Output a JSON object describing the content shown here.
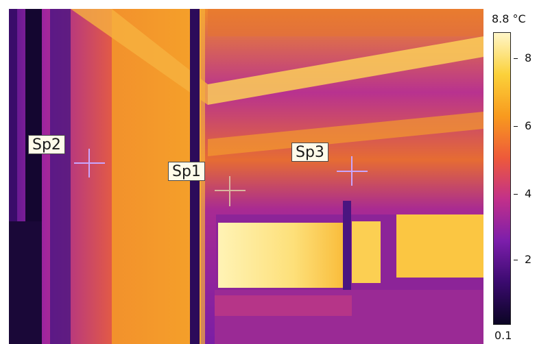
{
  "spots": [
    {
      "id": "sp1",
      "label": "Sp1"
    },
    {
      "id": "sp2",
      "label": "Sp2"
    },
    {
      "id": "sp3",
      "label": "Sp3"
    }
  ],
  "scale": {
    "max_value": "8.8",
    "unit": "°C",
    "min_value": "0.1",
    "ticks": [
      "8",
      "6",
      "4",
      "2"
    ],
    "gradient_colors": [
      "#0b0524",
      "#3a0a6e",
      "#7c1eab",
      "#c2308a",
      "#ee5a3a",
      "#f89a1e",
      "#fbd13a",
      "#fff6c8"
    ]
  }
}
